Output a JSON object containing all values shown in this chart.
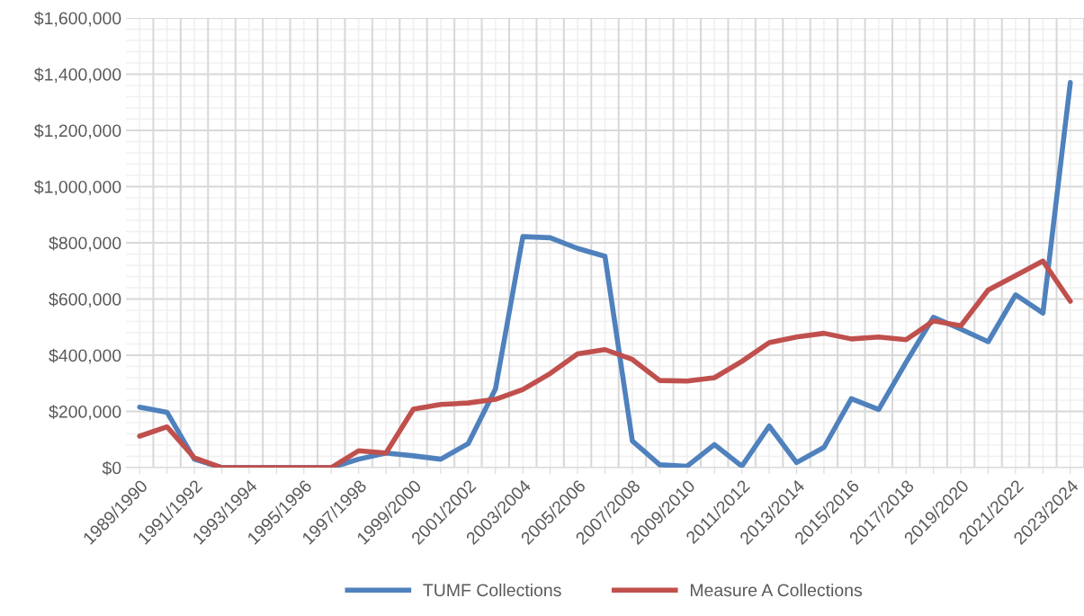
{
  "chart_data": {
    "type": "line",
    "categories": [
      "1989/1990",
      null,
      "1991/1992",
      null,
      "1993/1994",
      null,
      "1995/1996",
      null,
      "1997/1998",
      null,
      "1999/2000",
      null,
      "2001/2002",
      null,
      "2003/2004",
      null,
      "2005/2006",
      null,
      "2007/2008",
      null,
      "2009/2010",
      null,
      "2011/2012",
      null,
      "2013/2014",
      null,
      "2015/2016",
      null,
      "2017/2018",
      null,
      "2019/2020",
      null,
      "2021/2022",
      null,
      "2023/2024"
    ],
    "series": [
      {
        "name": "TUMF Collections",
        "color": "#4f81bd",
        "values": [
          215000,
          197000,
          30000,
          0,
          0,
          0,
          0,
          0,
          30000,
          52000,
          42000,
          30000,
          85000,
          280000,
          822000,
          818000,
          780000,
          752000,
          95000,
          10000,
          5000,
          82000,
          5000,
          148000,
          18000,
          72000,
          245000,
          207000,
          375000,
          535000,
          493000,
          448000,
          615000,
          550000,
          1370000
        ]
      },
      {
        "name": "Measure A Collections",
        "color": "#c0504d",
        "values": [
          112000,
          145000,
          35000,
          0,
          0,
          0,
          0,
          0,
          60000,
          52000,
          208000,
          225000,
          230000,
          243000,
          278000,
          335000,
          405000,
          420000,
          385000,
          310000,
          308000,
          320000,
          378000,
          445000,
          465000,
          478000,
          458000,
          465000,
          455000,
          522000,
          505000,
          632000,
          683000,
          735000,
          592000
        ]
      }
    ],
    "ylim": [
      0,
      1600000
    ],
    "yticks": [
      {
        "value": 0,
        "label": "$0"
      },
      {
        "value": 200000,
        "label": "$200,000"
      },
      {
        "value": 400000,
        "label": "$400,000"
      },
      {
        "value": 600000,
        "label": "$600,000"
      },
      {
        "value": 800000,
        "label": "$800,000"
      },
      {
        "value": 1000000,
        "label": "$1,000,000"
      },
      {
        "value": 1200000,
        "label": "$1,200,000"
      },
      {
        "value": 1400000,
        "label": "$1,400,000"
      },
      {
        "value": 1600000,
        "label": "$1,600,000"
      }
    ],
    "grid": true,
    "legend": "bottom",
    "marker": "none",
    "line_style": "solid"
  }
}
